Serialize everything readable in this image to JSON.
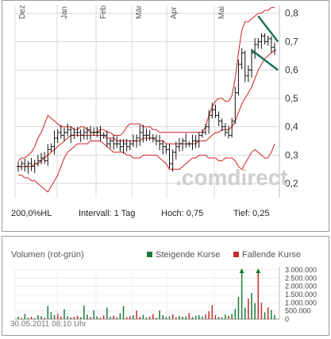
{
  "chart_data": [
    {
      "type": "candlestick",
      "months": [
        "Dez",
        "Jan",
        "Feb",
        "Mär",
        "Apr",
        "Mai"
      ],
      "y_ticks": [
        "0,8",
        "0,7",
        "0,6",
        "0,5",
        "0,4",
        "0,3",
        "0,2"
      ],
      "ylim": [
        0.15,
        0.83
      ],
      "grid": true,
      "watermark": "comdirect",
      "info": {
        "scale": "200,0%HL",
        "interval": "Intervall: 1 Tag",
        "high": "Hoch:  0,75",
        "low": "Tief:   0,25"
      },
      "prices": [
        0.26,
        0.27,
        0.26,
        0.27,
        0.26,
        0.27,
        0.28,
        0.29,
        0.28,
        0.32,
        0.33,
        0.36,
        0.38,
        0.37,
        0.38,
        0.39,
        0.37,
        0.38,
        0.38,
        0.37,
        0.38,
        0.39,
        0.38,
        0.38,
        0.38,
        0.37,
        0.37,
        0.34,
        0.35,
        0.34,
        0.34,
        0.33,
        0.34,
        0.33,
        0.34,
        0.35,
        0.36,
        0.38,
        0.37,
        0.37,
        0.36,
        0.36,
        0.35,
        0.34,
        0.33,
        0.32,
        0.27,
        0.31,
        0.33,
        0.34,
        0.35,
        0.34,
        0.34,
        0.35,
        0.35,
        0.37,
        0.38,
        0.4,
        0.44,
        0.46,
        0.44,
        0.42,
        0.4,
        0.38,
        0.37,
        0.42,
        0.52,
        0.62,
        0.66,
        0.58,
        0.6,
        0.66,
        0.69,
        0.7,
        0.72,
        0.7,
        0.71,
        0.68,
        0.67
      ],
      "bollinger_upper": [
        0.28,
        0.29,
        0.29,
        0.3,
        0.31,
        0.33,
        0.36,
        0.38,
        0.41,
        0.44,
        0.43,
        0.42,
        0.41,
        0.4,
        0.4,
        0.4,
        0.4,
        0.39,
        0.39,
        0.4,
        0.4,
        0.39,
        0.38,
        0.38,
        0.38,
        0.39,
        0.39,
        0.38,
        0.38,
        0.37,
        0.37,
        0.37,
        0.38,
        0.4,
        0.41,
        0.41,
        0.41,
        0.41,
        0.4,
        0.4,
        0.4,
        0.39,
        0.39,
        0.38,
        0.38,
        0.38,
        0.38,
        0.38,
        0.38,
        0.38,
        0.38,
        0.38,
        0.38,
        0.38,
        0.38,
        0.38,
        0.38,
        0.4,
        0.44,
        0.47,
        0.49,
        0.5,
        0.5,
        0.49,
        0.49,
        0.51,
        0.57,
        0.66,
        0.74,
        0.77,
        0.77,
        0.78,
        0.79,
        0.8,
        0.8,
        0.81,
        0.81,
        0.82,
        0.82
      ],
      "moving_average": [
        0.26,
        0.26,
        0.26,
        0.26,
        0.26,
        0.27,
        0.27,
        0.28,
        0.29,
        0.3,
        0.31,
        0.32,
        0.33,
        0.34,
        0.35,
        0.36,
        0.37,
        0.37,
        0.37,
        0.37,
        0.37,
        0.37,
        0.37,
        0.37,
        0.37,
        0.37,
        0.37,
        0.36,
        0.36,
        0.36,
        0.35,
        0.35,
        0.35,
        0.35,
        0.35,
        0.35,
        0.35,
        0.35,
        0.36,
        0.36,
        0.36,
        0.36,
        0.35,
        0.35,
        0.35,
        0.34,
        0.34,
        0.34,
        0.34,
        0.34,
        0.34,
        0.34,
        0.34,
        0.34,
        0.34,
        0.35,
        0.35,
        0.35,
        0.36,
        0.37,
        0.38,
        0.38,
        0.39,
        0.39,
        0.39,
        0.4,
        0.42,
        0.45,
        0.48,
        0.5,
        0.52,
        0.54,
        0.57,
        0.6,
        0.62,
        0.64,
        0.65,
        0.66,
        0.67
      ],
      "bollinger_lower": [
        0.23,
        0.23,
        0.22,
        0.22,
        0.21,
        0.21,
        0.2,
        0.19,
        0.18,
        0.17,
        0.19,
        0.21,
        0.23,
        0.26,
        0.29,
        0.31,
        0.32,
        0.33,
        0.34,
        0.34,
        0.34,
        0.34,
        0.35,
        0.35,
        0.35,
        0.35,
        0.34,
        0.33,
        0.32,
        0.31,
        0.31,
        0.31,
        0.31,
        0.3,
        0.3,
        0.29,
        0.29,
        0.29,
        0.3,
        0.3,
        0.3,
        0.3,
        0.3,
        0.29,
        0.28,
        0.27,
        0.25,
        0.25,
        0.25,
        0.25,
        0.26,
        0.27,
        0.28,
        0.29,
        0.29,
        0.3,
        0.3,
        0.3,
        0.29,
        0.29,
        0.29,
        0.28,
        0.28,
        0.29,
        0.29,
        0.29,
        0.28,
        0.26,
        0.25,
        0.27,
        0.29,
        0.31,
        0.32,
        0.31,
        0.3,
        0.29,
        0.29,
        0.31,
        0.34
      ]
    },
    {
      "type": "bar",
      "title": "Volumen (rot-grün)",
      "legend": [
        {
          "label": "Steigende Kurse",
          "color": "#1b7a3c"
        },
        {
          "label": "Fallende Kurse",
          "color": "#c62a2a"
        }
      ],
      "y_ticks": [
        "3.000.000",
        "2.500.000",
        "2.000.000",
        "1.500.000",
        "1.000.000",
        "500.000",
        "0"
      ],
      "ylim": [
        0,
        3000000
      ],
      "volumes": [
        150000,
        80000,
        320000,
        90000,
        140000,
        60000,
        240000,
        180000,
        90000,
        800000,
        420000,
        260000,
        310000,
        160000,
        600000,
        180000,
        95000,
        140000,
        210000,
        120000,
        820000,
        280000,
        130000,
        540000,
        170000,
        90000,
        230000,
        700000,
        140000,
        210000,
        110000,
        360000,
        800000,
        130000,
        180000,
        240000,
        520000,
        150000,
        260000,
        95000,
        160000,
        310000,
        90000,
        520000,
        250000,
        130000,
        180000,
        290000,
        110000,
        200000,
        150000,
        170000,
        380000,
        130000,
        210000,
        240000,
        160000,
        300000,
        480000,
        850000,
        250000,
        140000,
        110000,
        280000,
        200000,
        320000,
        620000,
        1350000,
        3000000,
        700000,
        1250000,
        1600000,
        980000,
        3000000,
        1000000,
        420000,
        720000,
        560000,
        260000
      ],
      "directions": "uduuduuudu uudduuddduuuduudduuduuuddudduudduuuuudduuuduuuuddddu uuduuuuuduudd"
    }
  ],
  "volume_panel": {
    "label": "Volumen (rot-grün)",
    "legend_up": "Steigende Kurse",
    "legend_down": "Fallende Kurse"
  },
  "info_bar": {
    "scale": "200,0%HL",
    "interval": "Intervall: 1 Tag",
    "high": "Hoch:  0,75",
    "low": "Tief:   0,25"
  },
  "timestamp": "30.05.2011 08:10 Uhr",
  "colors": {
    "band": "#d42020",
    "candle": "#111111",
    "grid": "#d8d8d8",
    "trend_line": "#1f6f58",
    "up": "#1b7a3c",
    "down": "#c62a2a",
    "watermark": "#cfcfcf"
  }
}
